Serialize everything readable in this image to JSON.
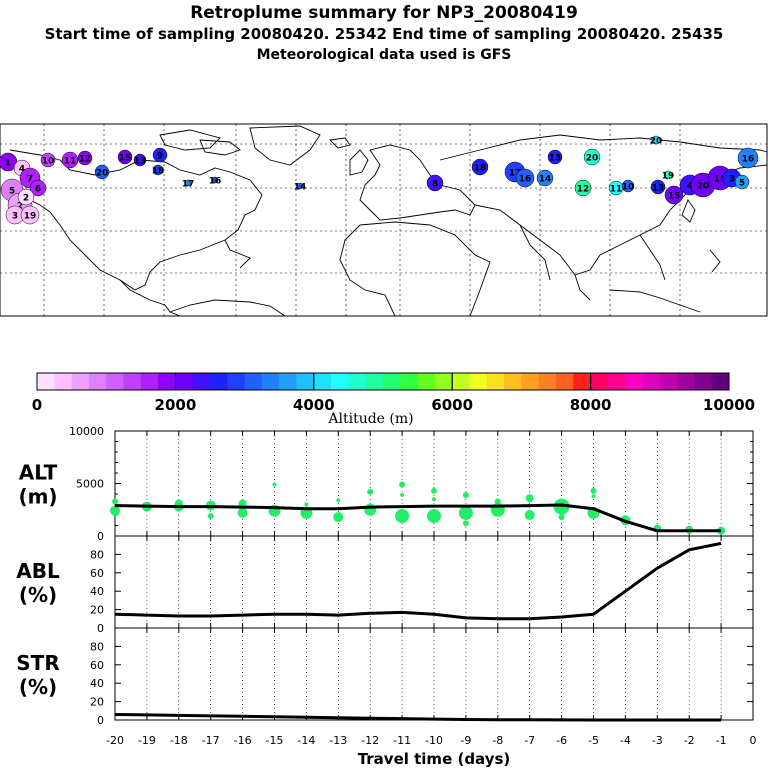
{
  "header": {
    "title": "Retroplume summary for NP3_20080419",
    "sampling": "Start time of sampling 20080420. 25342     End time of sampling 20080420. 25435",
    "met": "Meteorological data used is GFS"
  },
  "colorbar": {
    "label": "Altitude (m)",
    "ticks": [
      "0",
      "2000",
      "4000",
      "6000",
      "8000",
      "10000"
    ],
    "range": [
      0,
      10000
    ],
    "colors": [
      "#ffe0ff",
      "#ffc0ff",
      "#f0a0ff",
      "#e080ff",
      "#d060ff",
      "#c040ff",
      "#b020ff",
      "#9000ff",
      "#7000ff",
      "#4010ff",
      "#2020ff",
      "#2040ff",
      "#2060ff",
      "#2080ff",
      "#20a0ff",
      "#20c0ff",
      "#20e0ff",
      "#20ffff",
      "#20ffd0",
      "#20ffa0",
      "#20ff70",
      "#30ff40",
      "#60ff20",
      "#90ff20",
      "#c0ff20",
      "#f0ff20",
      "#ffe020",
      "#ffc020",
      "#ffa020",
      "#ff8020",
      "#ff6020",
      "#ff2020",
      "#ff0060",
      "#ff0090",
      "#ff00c0",
      "#e000c0",
      "#c000b0",
      "#a000a0",
      "#800090",
      "#600080"
    ]
  },
  "map": {
    "cluster_labels": [
      "1",
      "2",
      "3",
      "4",
      "5",
      "6",
      "7",
      "8",
      "9",
      "10",
      "11",
      "12",
      "13",
      "14",
      "15",
      "16",
      "17",
      "18",
      "19",
      "20"
    ]
  },
  "chart_data": [
    {
      "type": "line",
      "name": "ALT",
      "ylabel_line1": "ALT",
      "ylabel_line2": "(m)",
      "yticks": [
        "0",
        "5000",
        "10000"
      ],
      "ylim": [
        0,
        10000
      ],
      "x": [
        -20,
        -19,
        -18,
        -17,
        -16,
        -15,
        -14,
        -13,
        -12,
        -11,
        -10,
        -9,
        -8,
        -7,
        -6,
        -5,
        -4,
        -3,
        -2,
        -1
      ],
      "series": [
        {
          "name": "mean altitude",
          "values": [
            2900,
            2850,
            2800,
            2800,
            2750,
            2700,
            2600,
            2600,
            2750,
            2800,
            2850,
            2850,
            2850,
            2900,
            2950,
            2600,
            1400,
            500,
            500,
            500
          ]
        }
      ],
      "scatter_color": "#22ee66",
      "scatter": [
        [
          -20.0,
          3300,
          3
        ],
        [
          -20.0,
          2400,
          5
        ],
        [
          -19.0,
          2800,
          5
        ],
        [
          -18.0,
          3100,
          4
        ],
        [
          -18.0,
          2800,
          5
        ],
        [
          -17.0,
          2900,
          5
        ],
        [
          -17.0,
          1900,
          3
        ],
        [
          -16.0,
          3100,
          4
        ],
        [
          -16.0,
          2200,
          5
        ],
        [
          -15.0,
          4900,
          2
        ],
        [
          -15.0,
          2400,
          6
        ],
        [
          -14.0,
          3000,
          2
        ],
        [
          -14.0,
          2200,
          6
        ],
        [
          -13.0,
          3400,
          2
        ],
        [
          -13.0,
          1800,
          5
        ],
        [
          -12.0,
          4200,
          3
        ],
        [
          -12.0,
          2500,
          6
        ],
        [
          -11.0,
          4900,
          3
        ],
        [
          -11.0,
          3900,
          2
        ],
        [
          -11.0,
          1900,
          7
        ],
        [
          -10.0,
          4300,
          3
        ],
        [
          -10.0,
          3500,
          2
        ],
        [
          -10.0,
          1900,
          7
        ],
        [
          -9.0,
          3900,
          3
        ],
        [
          -9.0,
          2200,
          7
        ],
        [
          -9.0,
          1200,
          3
        ],
        [
          -8.0,
          3300,
          3
        ],
        [
          -8.0,
          2500,
          7
        ],
        [
          -7.0,
          3600,
          4
        ],
        [
          -7.0,
          2000,
          5
        ],
        [
          -6.0,
          3300,
          3
        ],
        [
          -6.0,
          2800,
          8
        ],
        [
          -6.0,
          1800,
          3
        ],
        [
          -5.0,
          4300,
          3
        ],
        [
          -5.0,
          3800,
          2
        ],
        [
          -5.0,
          2200,
          6
        ],
        [
          -4.0,
          1500,
          5
        ],
        [
          -3.0,
          700,
          4
        ],
        [
          -2.0,
          600,
          4
        ],
        [
          -1.0,
          500,
          4
        ]
      ]
    },
    {
      "type": "line",
      "name": "ABL",
      "ylabel_line1": "ABL",
      "ylabel_line2": "(%)",
      "yticks": [
        "0",
        "20",
        "40",
        "60",
        "80"
      ],
      "ylim": [
        0,
        100
      ],
      "x": [
        -20,
        -19,
        -18,
        -17,
        -16,
        -15,
        -14,
        -13,
        -12,
        -11,
        -10,
        -9,
        -8,
        -7,
        -6,
        -5,
        -4,
        -3,
        -2,
        -1
      ],
      "series": [
        {
          "name": "ABL fraction",
          "values": [
            15,
            14,
            13,
            13,
            14,
            15,
            15,
            14,
            16,
            17,
            15,
            11,
            10,
            10,
            12,
            15,
            40,
            65,
            85,
            92
          ]
        }
      ]
    },
    {
      "type": "line",
      "name": "STR",
      "ylabel_line1": "STR",
      "ylabel_line2": "(%)",
      "yticks": [
        "0",
        "20",
        "40",
        "60",
        "80"
      ],
      "ylim": [
        0,
        100
      ],
      "x": [
        -20,
        -19,
        -18,
        -17,
        -16,
        -15,
        -14,
        -13,
        -12,
        -11,
        -10,
        -9,
        -8,
        -7,
        -6,
        -5,
        -4,
        -3,
        -2,
        -1
      ],
      "series": [
        {
          "name": "stratospheric fraction",
          "values": [
            6,
            5.5,
            5,
            4.5,
            4,
            3.5,
            3,
            2.5,
            2,
            1.5,
            1,
            0.5,
            0.3,
            0.2,
            0.1,
            0,
            0,
            0,
            0,
            0
          ]
        }
      ],
      "xlabel": "Travel time (days)",
      "xticks": [
        "-20",
        "-19",
        "-18",
        "-17",
        "-16",
        "-15",
        "-14",
        "-13",
        "-12",
        "-11",
        "-10",
        "-9",
        "-8",
        "-7",
        "-6",
        "-5",
        "-4",
        "-3",
        "-2",
        "-1",
        "0"
      ],
      "xlim": [
        -20,
        0
      ]
    }
  ]
}
